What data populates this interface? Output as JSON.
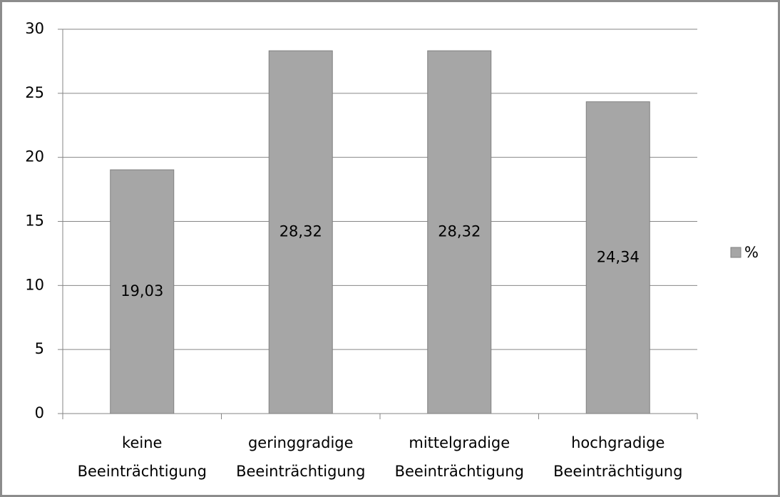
{
  "chart_data": {
    "type": "bar",
    "categories": [
      "keine Beeinträchtigung",
      "geringgradige Beeinträchtigung",
      "mittelgradige Beeinträchtigung",
      "hochgradige Beeinträchtigung"
    ],
    "series": [
      {
        "name": "%",
        "color": "#a6a6a6",
        "values": [
          19.03,
          28.32,
          28.32,
          24.34
        ],
        "value_labels": [
          "19,03",
          "28,32",
          "28,32",
          "24,34"
        ]
      }
    ],
    "ylim": [
      0,
      30
    ],
    "yticks": [
      0,
      5,
      10,
      15,
      20,
      25,
      30
    ],
    "grid": true,
    "legend": "right"
  }
}
